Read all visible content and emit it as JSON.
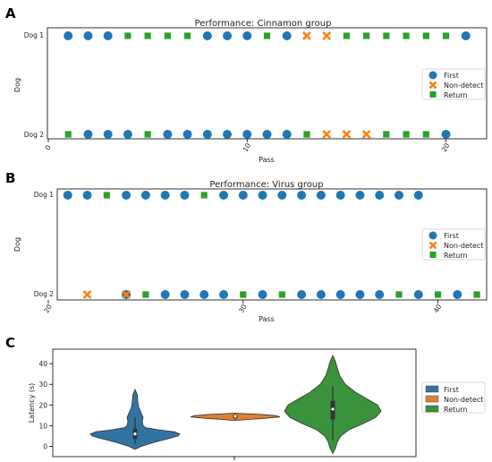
{
  "colors": {
    "first": "#1f77b4",
    "nondetect": "#ff7f0e",
    "return": "#2ca02c"
  },
  "panel_letters": [
    "A",
    "B",
    "C"
  ],
  "chart_data": [
    {
      "type": "scatter",
      "title": "Performance: Cinnamon group",
      "xlabel": "Pass",
      "ylabel": "Dog",
      "xlim": [
        0,
        22
      ],
      "x_ticks": [
        0,
        10,
        20
      ],
      "categories": [
        "Dog 1",
        "Dog 2"
      ],
      "legend": {
        "placement": "right",
        "entries": [
          "First",
          "Non-detect",
          "Return"
        ]
      },
      "series": [
        {
          "name": "First",
          "marker": "circle",
          "dog1": [
            1,
            2,
            3,
            8,
            9,
            10,
            12,
            21
          ],
          "dog2": [
            2,
            3,
            4,
            6,
            7,
            8,
            9,
            10,
            11,
            12,
            20
          ]
        },
        {
          "name": "Non-detect",
          "marker": "x",
          "dog1": [
            13,
            14
          ],
          "dog2": [
            14,
            15,
            16
          ]
        },
        {
          "name": "Return",
          "marker": "square",
          "dog1": [
            4,
            5,
            6,
            7,
            11,
            15,
            16,
            17,
            18,
            19,
            20
          ],
          "dog2": [
            1,
            5,
            13,
            17,
            18,
            19
          ]
        }
      ]
    },
    {
      "type": "scatter",
      "title": "Performance: Virus group",
      "xlabel": "Pass",
      "ylabel": "Dog",
      "xlim": [
        20,
        42.5
      ],
      "x_ticks": [
        20,
        30,
        40
      ],
      "categories": [
        "Dog 1",
        "Dog 2"
      ],
      "legend": {
        "placement": "right",
        "entries": [
          "First",
          "Non-detect",
          "Return"
        ]
      },
      "series": [
        {
          "name": "First",
          "marker": "circle",
          "dog1": [
            21,
            22,
            24,
            25,
            26,
            27,
            29,
            30,
            31,
            32,
            33,
            34,
            35,
            36,
            37,
            38,
            39
          ],
          "dog2": [
            24,
            26,
            27,
            28,
            29,
            31,
            33,
            34,
            35,
            36,
            37,
            39,
            41
          ]
        },
        {
          "name": "Non-detect",
          "marker": "x",
          "dog1": [],
          "dog2": [
            22,
            24
          ]
        },
        {
          "name": "Return",
          "marker": "square",
          "dog1": [
            23,
            28
          ],
          "dog2": [
            25,
            30,
            32,
            38,
            40,
            42
          ]
        }
      ]
    },
    {
      "type": "violin",
      "ylabel": "Latency (s)",
      "ylim": [
        -5,
        47
      ],
      "y_ticks": [
        0,
        10,
        20,
        30,
        40
      ],
      "legend": {
        "placement": "right",
        "entries": [
          "First",
          "Non-detect",
          "Return"
        ]
      },
      "series": [
        {
          "name": "First",
          "min": -1.5,
          "max": 27.5,
          "q1": 3.5,
          "median": 6,
          "q3": 8.5,
          "whisker": [
            1,
            14
          ]
        },
        {
          "name": "Non-detect",
          "min": 12.5,
          "max": 16,
          "q1": 13.5,
          "median": 14.5,
          "q3": 15.2,
          "whisker": [
            13,
            16
          ]
        },
        {
          "name": "Return",
          "min": -3.5,
          "max": 44,
          "q1": 13,
          "median": 18,
          "q3": 22,
          "whisker": [
            3,
            29
          ]
        }
      ]
    }
  ]
}
